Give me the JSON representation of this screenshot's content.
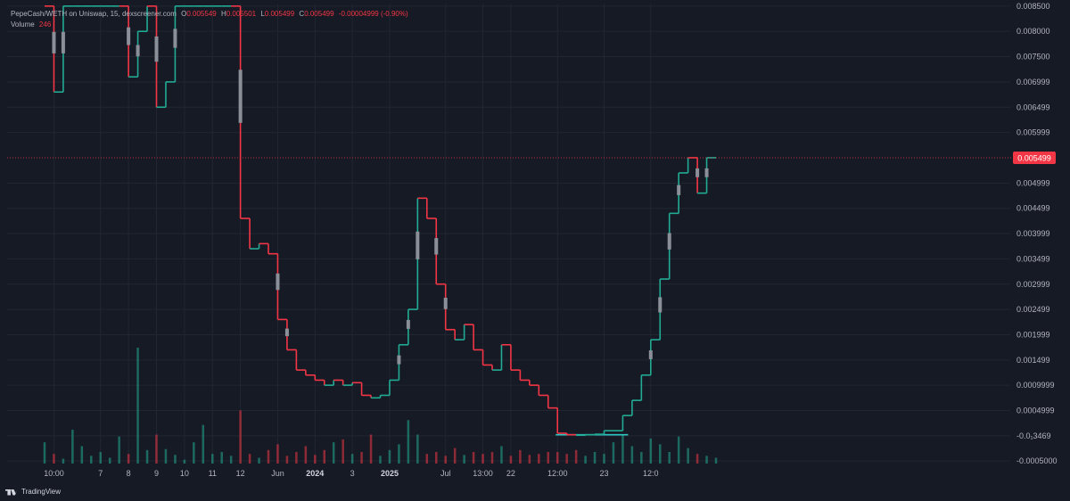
{
  "legend": {
    "symbol": "PepeCash/WETH on Uniswap, 15, dexscreener.com",
    "open_label": "O",
    "open_value": "0.005549",
    "high_label": "H",
    "high_value": "0.005501",
    "low_label": "L",
    "low_value": "0.005499",
    "close_label": "C",
    "close_value": "0.005499",
    "change": "-0.00004999 (-0.90%)",
    "volume_label": "Volume",
    "volume_value": "246"
  },
  "footer": {
    "brand": "TradingView"
  },
  "colors": {
    "background": "#161a25",
    "grid": "#222632",
    "up": "#22ab94",
    "down": "#f23645",
    "doji": "#8a8f98",
    "axis_text": "#b2b5be",
    "price_line": "#f23645",
    "support_line": "#2ec4c0"
  },
  "chart_data": {
    "type": "line",
    "title": "PepeCash/WETH on Uniswap, 15, dexscreener.com",
    "xlabel": "",
    "ylabel": "",
    "ylim": [
      -0.00055,
      0.00855
    ],
    "grid": true,
    "y_ticks": [
      "0.008500",
      "0.008000",
      "0.007500",
      "0.006999",
      "0.006499",
      "0.005999",
      "0.004999",
      "0.004499",
      "0.003999",
      "0.003499",
      "0.002999",
      "0.002499",
      "0.001999",
      "0.001499",
      "0.0009999",
      "0.0004999",
      "-0.0₁3469",
      "-0.0005000"
    ],
    "y_tick_values": [
      0.0085,
      0.008,
      0.0075,
      0.006999,
      0.006499,
      0.005999,
      0.004999,
      0.004499,
      0.003999,
      0.003499,
      0.002999,
      0.002499,
      0.001999,
      0.001499,
      0.0009999,
      0.0004999,
      0.0,
      -0.0005
    ],
    "x_ticks": [
      "10:00",
      "7",
      "8",
      "9",
      "10",
      "11",
      "12",
      "Jun",
      "2024",
      "3",
      "2025",
      "Jul",
      "13:00",
      "22",
      "12:00",
      "23",
      "12:0"
    ],
    "x_tick_index": [
      1,
      6,
      9,
      12,
      15,
      18,
      21,
      25,
      29,
      33,
      37,
      43,
      47,
      50,
      55,
      60,
      65
    ],
    "bold_x_ticks": [
      "2024",
      "2025"
    ],
    "current_price": "0.005499",
    "current_price_value": 0.005499,
    "support_level": 2e-05,
    "series": [
      {
        "name": "Price",
        "values": [
          0.0085,
          0.0068,
          0.0085,
          0.0085,
          0.0085,
          0.0085,
          0.0085,
          0.0085,
          0.0085,
          0.0071,
          0.008,
          0.0085,
          0.0065,
          0.007,
          0.0085,
          0.0085,
          0.0085,
          0.0085,
          0.0085,
          0.0085,
          0.0085,
          0.0043,
          0.0037,
          0.0038,
          0.0036,
          0.0023,
          0.0017,
          0.0013,
          0.0012,
          0.0011,
          0.001,
          0.0011,
          0.001,
          0.00105,
          0.0008,
          0.00075,
          0.0008,
          0.0011,
          0.0018,
          0.0025,
          0.0047,
          0.0043,
          0.003,
          0.0021,
          0.0019,
          0.0022,
          0.0017,
          0.0014,
          0.0013,
          0.0018,
          0.0013,
          0.0011,
          0.001,
          0.0008,
          0.00055,
          5e-05,
          2e-05,
          1e-05,
          2e-05,
          3e-05,
          0.0001,
          0.0001,
          0.0004,
          0.0007,
          0.0012,
          0.0019,
          0.0031,
          0.0044,
          0.0052,
          0.0055,
          0.0048,
          0.0055,
          0.0055
        ]
      },
      {
        "name": "Volume",
        "values": [
          22,
          10,
          5,
          35,
          18,
          8,
          12,
          6,
          28,
          10,
          120,
          14,
          30,
          15,
          9,
          4,
          22,
          40,
          10,
          12,
          8,
          55,
          10,
          6,
          14,
          20,
          8,
          12,
          18,
          9,
          14,
          22,
          25,
          10,
          12,
          30,
          8,
          14,
          20,
          45,
          30,
          10,
          12,
          8,
          16,
          9,
          12,
          10,
          12,
          18,
          8,
          14,
          9,
          10,
          12,
          12,
          10,
          14,
          8,
          12,
          10,
          22,
          30,
          18,
          12,
          26,
          20,
          12,
          28,
          16,
          10,
          8,
          6
        ]
      }
    ]
  }
}
